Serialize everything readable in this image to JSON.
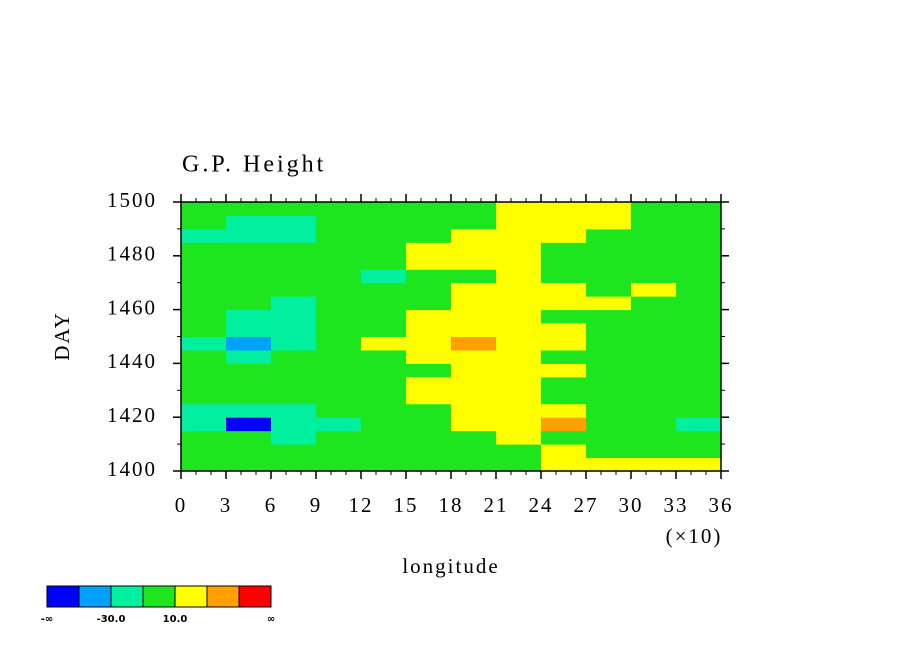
{
  "chart_data": {
    "type": "heatmap",
    "title": "G.P. Height",
    "xlabel": "longitude",
    "ylabel": "DAY",
    "x_scale_label": "(×10)",
    "xlim": [
      0,
      360
    ],
    "ylim": [
      1400,
      1500
    ],
    "xticks": [
      {
        "value": 0,
        "label": "0"
      },
      {
        "value": 30,
        "label": "3"
      },
      {
        "value": 60,
        "label": "6"
      },
      {
        "value": 90,
        "label": "9"
      },
      {
        "value": 120,
        "label": "12"
      },
      {
        "value": 150,
        "label": "15"
      },
      {
        "value": 180,
        "label": "18"
      },
      {
        "value": 210,
        "label": "21"
      },
      {
        "value": 240,
        "label": "24"
      },
      {
        "value": 270,
        "label": "27"
      },
      {
        "value": 300,
        "label": "30"
      },
      {
        "value": 330,
        "label": "33"
      },
      {
        "value": 360,
        "label": "36"
      }
    ],
    "yticks": [
      1400,
      1420,
      1440,
      1460,
      1480,
      1500
    ],
    "x_minor_step": 10,
    "y_minor_step": 10,
    "x": [
      15,
      45,
      75,
      105,
      135,
      165,
      195,
      225,
      255,
      285,
      315,
      345
    ],
    "y": [
      1402.5,
      1407.5,
      1412.5,
      1417.5,
      1422.5,
      1427.5,
      1432.5,
      1437.5,
      1442.5,
      1447.5,
      1452.5,
      1457.5,
      1462.5,
      1467.5,
      1472.5,
      1477.5,
      1482.5,
      1487.5,
      1492.5,
      1497.5
    ],
    "z": [
      [
        5,
        0,
        2,
        -5,
        0,
        3,
        8,
        5,
        12,
        15,
        18,
        12
      ],
      [
        8,
        3,
        -2,
        -6,
        0,
        5,
        2,
        6,
        10,
        8,
        6,
        4
      ],
      [
        -5,
        -8,
        -12,
        -8,
        -3,
        2,
        6,
        12,
        8,
        4,
        0,
        -6
      ],
      [
        -15,
        -55,
        -22,
        -12,
        -4,
        5,
        14,
        16,
        35,
        8,
        2,
        -12
      ],
      [
        -12,
        -18,
        -14,
        -8,
        2,
        8,
        12,
        18,
        14,
        6,
        -2,
        -8
      ],
      [
        -4,
        -6,
        -2,
        4,
        6,
        10,
        14,
        12,
        8,
        2,
        -4,
        -6
      ],
      [
        2,
        -3,
        0,
        5,
        8,
        12,
        10,
        14,
        6,
        0,
        -2,
        2
      ],
      [
        4,
        6,
        2,
        0,
        5,
        8,
        14,
        12,
        10,
        4,
        6,
        8
      ],
      [
        -6,
        -12,
        -8,
        -2,
        8,
        14,
        12,
        16,
        8,
        3,
        -2,
        -4
      ],
      [
        -14,
        -32,
        -18,
        -6,
        14,
        20,
        32,
        18,
        12,
        6,
        2,
        -8
      ],
      [
        -10,
        -26,
        -16,
        -4,
        6,
        16,
        14,
        18,
        10,
        4,
        -2,
        -6
      ],
      [
        -8,
        -12,
        -14,
        -2,
        4,
        12,
        18,
        16,
        8,
        4,
        -4,
        -2
      ],
      [
        0,
        -6,
        -12,
        -8,
        2,
        8,
        16,
        14,
        10,
        12,
        6,
        4
      ],
      [
        6,
        2,
        -4,
        -6,
        0,
        6,
        10,
        14,
        12,
        8,
        12,
        6
      ],
      [
        4,
        0,
        -2,
        -10,
        -12,
        2,
        8,
        12,
        6,
        2,
        4,
        8
      ],
      [
        0,
        -4,
        2,
        -8,
        -4,
        12,
        16,
        14,
        8,
        4,
        0,
        -2
      ],
      [
        -6,
        -8,
        -6,
        -2,
        6,
        14,
        18,
        12,
        6,
        2,
        -4,
        -6
      ],
      [
        -12,
        -18,
        -12,
        -6,
        2,
        6,
        12,
        10,
        14,
        8,
        4,
        -2
      ],
      [
        -10,
        -14,
        -16,
        -8,
        -2,
        4,
        8,
        12,
        16,
        12,
        6,
        0
      ],
      [
        4,
        2,
        -6,
        -4,
        -2,
        2,
        6,
        14,
        12,
        10,
        -4,
        -8
      ]
    ],
    "colorbar": {
      "thresholds": [
        -50,
        -30,
        -10,
        10,
        30,
        50
      ],
      "colors": [
        "#0000ff",
        "#00a0ff",
        "#00f0a0",
        "#1ee61e",
        "#ffff00",
        "#ffa000",
        "#ff0000"
      ],
      "labels": [
        {
          "edge": "left",
          "label": "-∞"
        },
        {
          "value": -30,
          "label": "-30.0"
        },
        {
          "value": 10,
          "label": "10.0"
        },
        {
          "edge": "right",
          "label": "∞"
        }
      ]
    }
  }
}
